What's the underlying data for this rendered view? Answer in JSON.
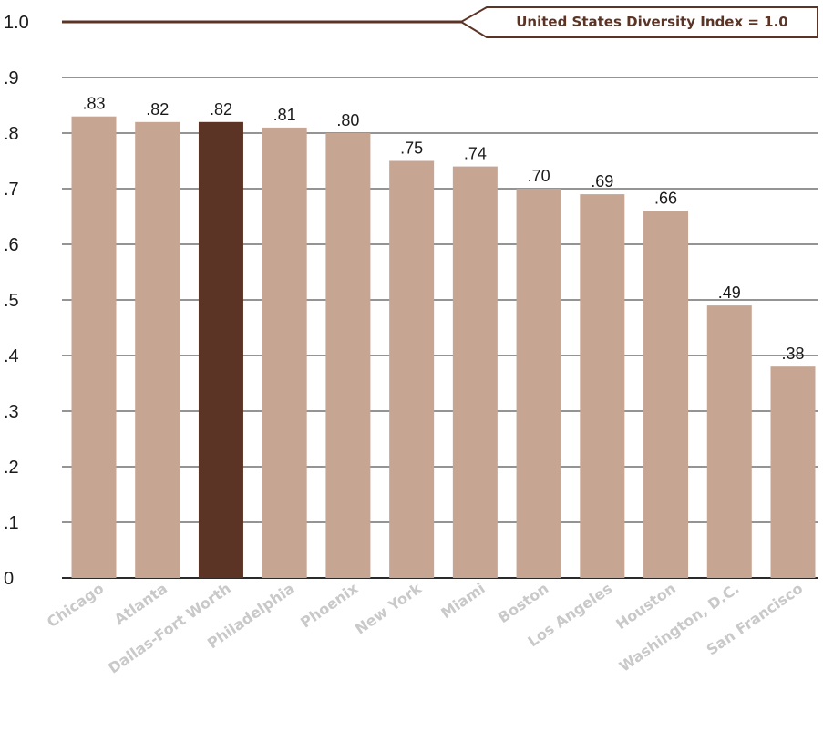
{
  "chart_data": {
    "type": "bar",
    "categories": [
      "Chicago",
      "Atlanta",
      "Dallas-Fort Worth",
      "Philadelphia",
      "Phoenix",
      "New York",
      "Miami",
      "Boston",
      "Los Angeles",
      "Houston",
      "Washington, D.C.",
      "San Francisco"
    ],
    "values": [
      0.83,
      0.82,
      0.82,
      0.81,
      0.8,
      0.75,
      0.74,
      0.7,
      0.69,
      0.66,
      0.49,
      0.38
    ],
    "value_labels": [
      ".83",
      ".82",
      ".82",
      ".81",
      ".80",
      ".75",
      ".74",
      ".70",
      ".69",
      ".66",
      ".49",
      ".38"
    ],
    "highlight_index": 2,
    "ylim": [
      0,
      1.0
    ],
    "yticks": [
      {
        "value": 0,
        "label": "0"
      },
      {
        "value": 0.1,
        "label": ".1"
      },
      {
        "value": 0.2,
        "label": ".2"
      },
      {
        "value": 0.3,
        "label": ".3"
      },
      {
        "value": 0.4,
        "label": ".4"
      },
      {
        "value": 0.5,
        "label": ".5"
      },
      {
        "value": 0.6,
        "label": ".6"
      },
      {
        "value": 0.7,
        "label": ".7"
      },
      {
        "value": 0.8,
        "label": ".8"
      },
      {
        "value": 0.9,
        "label": ".9"
      },
      {
        "value": 1.0,
        "label": "1.0"
      }
    ],
    "reference_line": {
      "value": 1.0,
      "label": "United States Diversity Index = 1.0"
    },
    "grid": true,
    "title": "",
    "xlabel": "",
    "ylabel": ""
  },
  "colors": {
    "bar": "#c6a593",
    "highlight": "#5b3426",
    "grid": "#2a2a2a",
    "reference": "#5b3426",
    "category_text": "#c9c9c9"
  }
}
